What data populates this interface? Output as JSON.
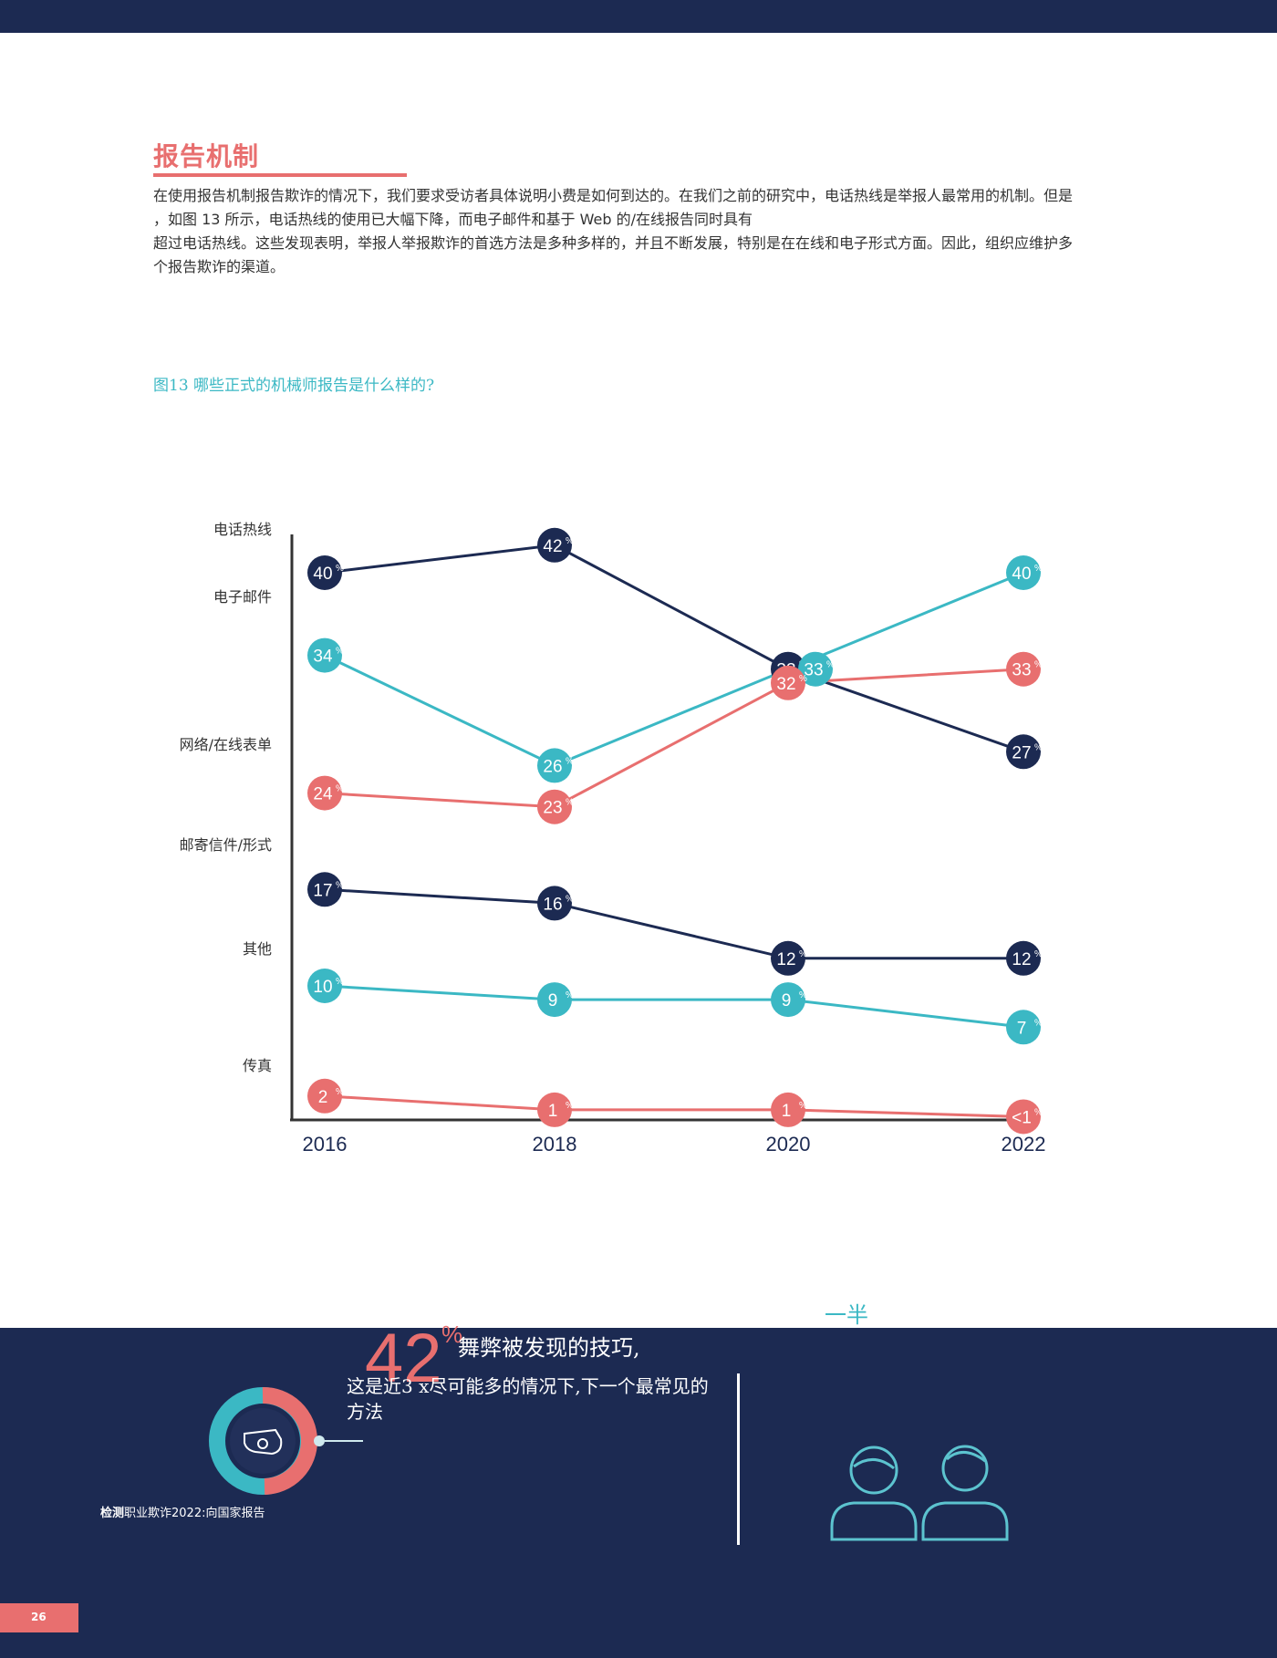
{
  "section": {
    "title": "报告机制",
    "paragraph": [
      "在使用报告机制报告欺诈的情况下，我们要求受访者具体说明小费是如何到达的。在我们之前的研究中，电话热线是举报人最常用的机制。但是",
      "，如图 13 所示，电话热线的使用已大幅下降，而电子邮件和基于 Web 的/在线报告同时具有",
      "超过电话热线。这些发现表明，举报人举报欺诈的首选方法是多种多样的，并且不断发展，特别是在在线和电子形式方面。因此，组织应维护多",
      "个报告欺诈的渠道。"
    ]
  },
  "figure_caption": "图13 哪些正式的机械师报告是什么样的?",
  "chart_data": {
    "type": "line",
    "categories": [
      "2016",
      "2018",
      "2020",
      "2022"
    ],
    "row_labels": [
      "电话热线",
      "电子邮件",
      "网络/在线表单",
      "邮寄信件/形式",
      "其他",
      "传真"
    ],
    "series": [
      {
        "values": [
          40,
          42,
          33,
          27
        ],
        "labels": [
          "40",
          "42",
          "33",
          "27"
        ],
        "color": "#1c2a52"
      },
      {
        "values": [
          34,
          26,
          33,
          40
        ],
        "labels": [
          "34",
          "26",
          "33",
          "40"
        ],
        "color": "#3bb8c4"
      },
      {
        "values": [
          24,
          23,
          32,
          33
        ],
        "labels": [
          "24",
          "23",
          "32",
          "33"
        ],
        "color": "#e86f6f"
      },
      {
        "values": [
          17,
          16,
          12,
          12
        ],
        "labels": [
          "17",
          "16",
          "12",
          "12"
        ],
        "color": "#1c2a52"
      },
      {
        "values": [
          10,
          9,
          9,
          7
        ],
        "labels": [
          "10",
          "9",
          "9",
          "7"
        ],
        "color": "#3bb8c4"
      },
      {
        "values": [
          2,
          1,
          1,
          0.5
        ],
        "labels": [
          "2",
          "1",
          "1",
          "<1"
        ],
        "color": "#e86f6f"
      }
    ],
    "unit": "%"
  },
  "stats": {
    "half_label": "一半",
    "number": "42",
    "percent": "%",
    "headline": "舞弊被发现的技巧,",
    "description": "这是近3 x尽可能多的情况下,下一个最常见的方法"
  },
  "footer": {
    "report_bold": "检测",
    "report_rest": "职业欺诈2022:向国家报告",
    "page_number": "26"
  },
  "icons": {
    "whistle": "whistle-icon",
    "people": "people-icon"
  }
}
